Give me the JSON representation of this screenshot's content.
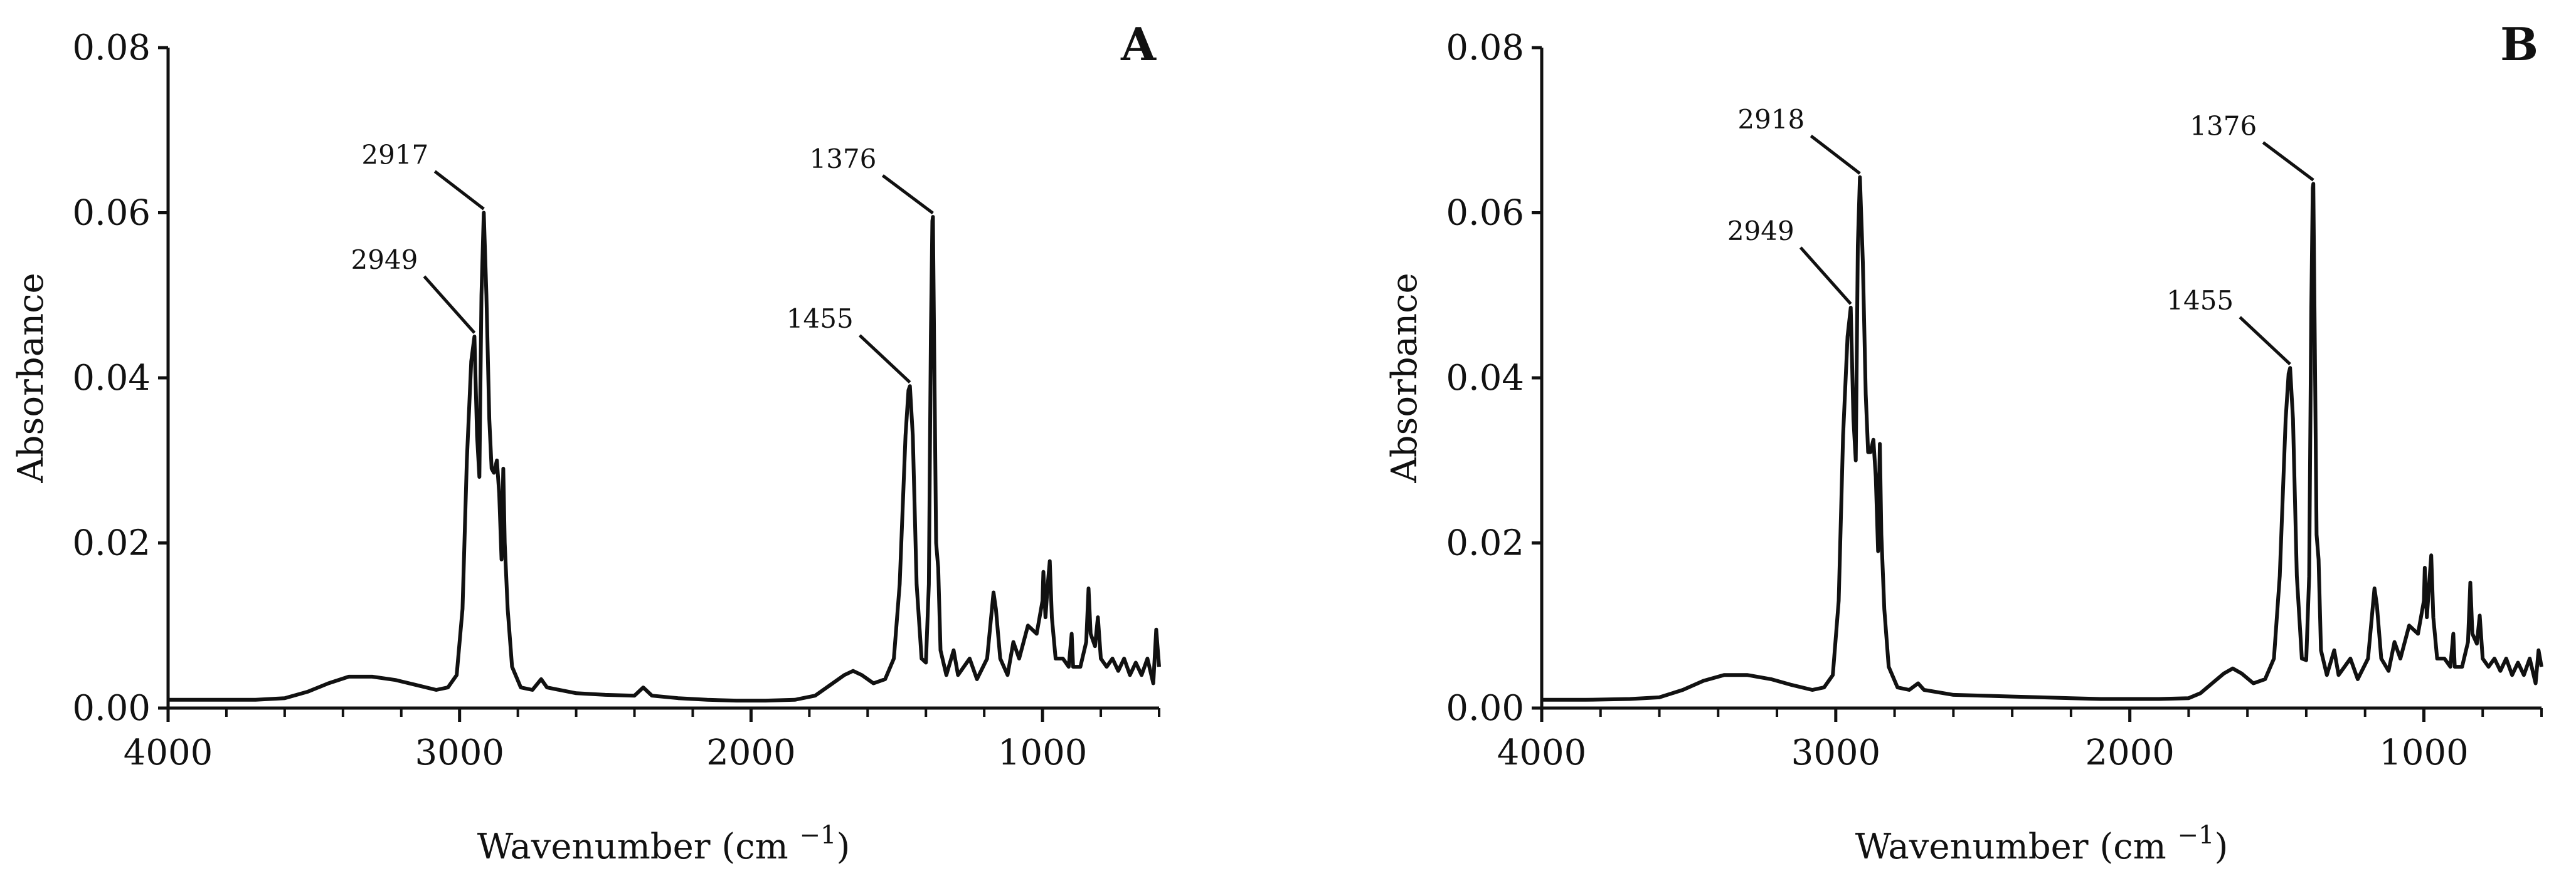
{
  "chart_data": [
    {
      "type": "line",
      "panel": "A",
      "xlabel": "Wavenumber (cm",
      "xlabel_sup": "−1",
      "xlabel_end": ")",
      "ylabel": "Absorbance",
      "xlim": [
        4000,
        600
      ],
      "ylim": [
        0,
        0.08
      ],
      "xticks": [
        "4000",
        "3000",
        "2000",
        "1000"
      ],
      "yticks": [
        "0.00",
        "0.02",
        "0.04",
        "0.06",
        "0.08"
      ],
      "grid": false,
      "series": [
        {
          "points": [
            [
              4000,
              0.001
            ],
            [
              3850,
              0.001
            ],
            [
              3700,
              0.001
            ],
            [
              3600,
              0.0012
            ],
            [
              3520,
              0.002
            ],
            [
              3450,
              0.003
            ],
            [
              3380,
              0.0038
            ],
            [
              3300,
              0.0038
            ],
            [
              3220,
              0.0034
            ],
            [
              3150,
              0.0028
            ],
            [
              3080,
              0.0022
            ],
            [
              3040,
              0.0025
            ],
            [
              3010,
              0.004
            ],
            [
              2990,
              0.012
            ],
            [
              2975,
              0.03
            ],
            [
              2960,
              0.042
            ],
            [
              2949,
              0.045
            ],
            [
              2940,
              0.033
            ],
            [
              2932,
              0.028
            ],
            [
              2925,
              0.05
            ],
            [
              2917,
              0.06
            ],
            [
              2908,
              0.05
            ],
            [
              2898,
              0.035
            ],
            [
              2890,
              0.029
            ],
            [
              2882,
              0.0285
            ],
            [
              2872,
              0.03
            ],
            [
              2864,
              0.026
            ],
            [
              2856,
              0.018
            ],
            [
              2850,
              0.029
            ],
            [
              2845,
              0.02
            ],
            [
              2835,
              0.012
            ],
            [
              2820,
              0.005
            ],
            [
              2790,
              0.0025
            ],
            [
              2750,
              0.0022
            ],
            [
              2720,
              0.0035
            ],
            [
              2700,
              0.0025
            ],
            [
              2600,
              0.0018
            ],
            [
              2500,
              0.0016
            ],
            [
              2400,
              0.0015
            ],
            [
              2370,
              0.0025
            ],
            [
              2340,
              0.0015
            ],
            [
              2250,
              0.0012
            ],
            [
              2150,
              0.001
            ],
            [
              2050,
              0.0009
            ],
            [
              1950,
              0.0009
            ],
            [
              1850,
              0.001
            ],
            [
              1780,
              0.0015
            ],
            [
              1720,
              0.003
            ],
            [
              1680,
              0.004
            ],
            [
              1650,
              0.0045
            ],
            [
              1620,
              0.004
            ],
            [
              1580,
              0.003
            ],
            [
              1540,
              0.0035
            ],
            [
              1510,
              0.006
            ],
            [
              1490,
              0.015
            ],
            [
              1470,
              0.033
            ],
            [
              1460,
              0.0385
            ],
            [
              1455,
              0.039
            ],
            [
              1445,
              0.033
            ],
            [
              1432,
              0.015
            ],
            [
              1415,
              0.006
            ],
            [
              1400,
              0.0055
            ],
            [
              1390,
              0.015
            ],
            [
              1383,
              0.045
            ],
            [
              1378,
              0.059
            ],
            [
              1376,
              0.0595
            ],
            [
              1372,
              0.045
            ],
            [
              1365,
              0.02
            ],
            [
              1358,
              0.017
            ],
            [
              1350,
              0.007
            ],
            [
              1330,
              0.004
            ],
            [
              1305,
              0.007
            ],
            [
              1290,
              0.004
            ],
            [
              1250,
              0.006
            ],
            [
              1225,
              0.0035
            ],
            [
              1190,
              0.006
            ],
            [
              1168,
              0.014
            ],
            [
              1160,
              0.012
            ],
            [
              1145,
              0.006
            ],
            [
              1120,
              0.004
            ],
            [
              1100,
              0.008
            ],
            [
              1080,
              0.006
            ],
            [
              1050,
              0.01
            ],
            [
              1020,
              0.009
            ],
            [
              1000,
              0.013
            ],
            [
              997,
              0.0165
            ],
            [
              990,
              0.011
            ],
            [
              982,
              0.015
            ],
            [
              975,
              0.0178
            ],
            [
              968,
              0.011
            ],
            [
              955,
              0.006
            ],
            [
              930,
              0.006
            ],
            [
              910,
              0.005
            ],
            [
              900,
              0.009
            ],
            [
              895,
              0.005
            ],
            [
              870,
              0.005
            ],
            [
              850,
              0.008
            ],
            [
              842,
              0.0145
            ],
            [
              835,
              0.009
            ],
            [
              820,
              0.0075
            ],
            [
              810,
              0.011
            ],
            [
              800,
              0.006
            ],
            [
              780,
              0.005
            ],
            [
              760,
              0.006
            ],
            [
              740,
              0.0045
            ],
            [
              720,
              0.006
            ],
            [
              700,
              0.004
            ],
            [
              680,
              0.0055
            ],
            [
              660,
              0.004
            ],
            [
              640,
              0.006
            ],
            [
              620,
              0.003
            ],
            [
              610,
              0.0095
            ],
            [
              600,
              0.005
            ]
          ]
        }
      ],
      "annotations": [
        {
          "text": "2917",
          "x": 2917,
          "y": 0.06
        },
        {
          "text": "2949",
          "x": 2949,
          "y": 0.045
        },
        {
          "text": "1376",
          "x": 1376,
          "y": 0.0595
        },
        {
          "text": "1455",
          "x": 1455,
          "y": 0.039
        }
      ]
    },
    {
      "type": "line",
      "panel": "B",
      "xlabel": "Wavenumber (cm",
      "xlabel_sup": "−1",
      "xlabel_end": ")",
      "ylabel": "Absorbance",
      "xlim": [
        4000,
        600
      ],
      "ylim": [
        0,
        0.08
      ],
      "xticks": [
        "4000",
        "3000",
        "2000",
        "1000"
      ],
      "yticks": [
        "0.00",
        "0.02",
        "0.04",
        "0.06",
        "0.08"
      ],
      "grid": false,
      "series": [
        {
          "points": [
            [
              4000,
              0.001
            ],
            [
              3850,
              0.001
            ],
            [
              3700,
              0.0011
            ],
            [
              3600,
              0.0013
            ],
            [
              3520,
              0.0022
            ],
            [
              3450,
              0.0033
            ],
            [
              3380,
              0.004
            ],
            [
              3300,
              0.004
            ],
            [
              3220,
              0.0035
            ],
            [
              3150,
              0.0028
            ],
            [
              3080,
              0.0022
            ],
            [
              3040,
              0.0025
            ],
            [
              3010,
              0.004
            ],
            [
              2990,
              0.013
            ],
            [
              2975,
              0.033
            ],
            [
              2960,
              0.045
            ],
            [
              2949,
              0.0485
            ],
            [
              2940,
              0.035
            ],
            [
              2932,
              0.03
            ],
            [
              2925,
              0.056
            ],
            [
              2918,
              0.0643
            ],
            [
              2908,
              0.054
            ],
            [
              2898,
              0.038
            ],
            [
              2890,
              0.031
            ],
            [
              2882,
              0.031
            ],
            [
              2872,
              0.0325
            ],
            [
              2864,
              0.028
            ],
            [
              2856,
              0.019
            ],
            [
              2850,
              0.032
            ],
            [
              2845,
              0.021
            ],
            [
              2835,
              0.012
            ],
            [
              2820,
              0.005
            ],
            [
              2790,
              0.0025
            ],
            [
              2750,
              0.0022
            ],
            [
              2720,
              0.003
            ],
            [
              2700,
              0.0022
            ],
            [
              2600,
              0.0016
            ],
            [
              2500,
              0.0015
            ],
            [
              2400,
              0.0014
            ],
            [
              2300,
              0.0013
            ],
            [
              2200,
              0.0012
            ],
            [
              2100,
              0.0011
            ],
            [
              2000,
              0.0011
            ],
            [
              1900,
              0.0011
            ],
            [
              1800,
              0.0012
            ],
            [
              1760,
              0.0018
            ],
            [
              1720,
              0.003
            ],
            [
              1680,
              0.0042
            ],
            [
              1650,
              0.0048
            ],
            [
              1620,
              0.0042
            ],
            [
              1580,
              0.003
            ],
            [
              1540,
              0.0035
            ],
            [
              1510,
              0.006
            ],
            [
              1490,
              0.016
            ],
            [
              1470,
              0.035
            ],
            [
              1460,
              0.0405
            ],
            [
              1455,
              0.0412
            ],
            [
              1445,
              0.035
            ],
            [
              1432,
              0.016
            ],
            [
              1415,
              0.006
            ],
            [
              1400,
              0.0058
            ],
            [
              1390,
              0.016
            ],
            [
              1383,
              0.048
            ],
            [
              1378,
              0.063
            ],
            [
              1376,
              0.0635
            ],
            [
              1372,
              0.048
            ],
            [
              1365,
              0.021
            ],
            [
              1358,
              0.018
            ],
            [
              1350,
              0.007
            ],
            [
              1330,
              0.004
            ],
            [
              1305,
              0.007
            ],
            [
              1290,
              0.004
            ],
            [
              1250,
              0.006
            ],
            [
              1225,
              0.0035
            ],
            [
              1190,
              0.006
            ],
            [
              1168,
              0.0145
            ],
            [
              1160,
              0.0125
            ],
            [
              1145,
              0.006
            ],
            [
              1120,
              0.0045
            ],
            [
              1100,
              0.008
            ],
            [
              1080,
              0.006
            ],
            [
              1050,
              0.01
            ],
            [
              1020,
              0.009
            ],
            [
              1000,
              0.013
            ],
            [
              997,
              0.017
            ],
            [
              990,
              0.011
            ],
            [
              982,
              0.015
            ],
            [
              975,
              0.0185
            ],
            [
              968,
              0.011
            ],
            [
              955,
              0.006
            ],
            [
              930,
              0.006
            ],
            [
              910,
              0.005
            ],
            [
              900,
              0.009
            ],
            [
              895,
              0.005
            ],
            [
              870,
              0.005
            ],
            [
              850,
              0.008
            ],
            [
              842,
              0.0152
            ],
            [
              835,
              0.009
            ],
            [
              820,
              0.0078
            ],
            [
              810,
              0.0112
            ],
            [
              800,
              0.006
            ],
            [
              780,
              0.005
            ],
            [
              760,
              0.006
            ],
            [
              740,
              0.0045
            ],
            [
              720,
              0.006
            ],
            [
              700,
              0.004
            ],
            [
              680,
              0.0055
            ],
            [
              660,
              0.004
            ],
            [
              640,
              0.006
            ],
            [
              620,
              0.003
            ],
            [
              610,
              0.007
            ],
            [
              600,
              0.005
            ]
          ]
        }
      ],
      "annotations": [
        {
          "text": "2918",
          "x": 2918,
          "y": 0.0643
        },
        {
          "text": "2949",
          "x": 2949,
          "y": 0.0485
        },
        {
          "text": "1376",
          "x": 1376,
          "y": 0.0635
        },
        {
          "text": "1455",
          "x": 1455,
          "y": 0.0412
        }
      ]
    }
  ]
}
